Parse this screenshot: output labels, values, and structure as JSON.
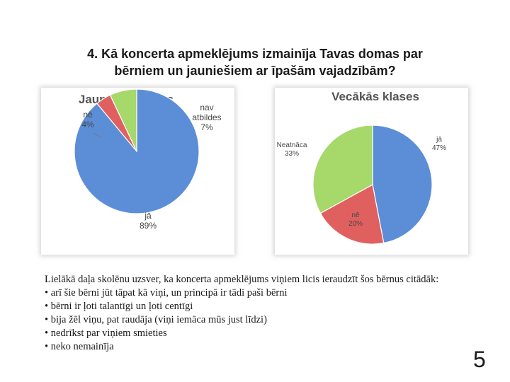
{
  "slide": {
    "title_line1": "4.  Kā koncerta apmeklējums izmainīja Tavas domas par",
    "title_line2": "bērniem un jauniešiem ar īpašām vajadzībām?",
    "summary": "Lielākā daļa skolēnu uzsver, ka koncerta apmeklējums viņiem licis ieraudzīt šos bērnus citādāk:",
    "bullets": [
      "arī šie bērni jūt tāpat kā viņi, un principā ir tādi paši bērni",
      "bērni ir ļoti talantīgi un ļoti centīgi",
      "bija žēl viņu, pat raudāja (viņi iemāca mūs just līdzi)",
      "nedrīkst par viņiem smieties",
      "neko nemainīja"
    ],
    "page_number": "5"
  },
  "chart_data": [
    {
      "type": "pie",
      "title": "Jaunākās klases",
      "slices": [
        {
          "label": "jā",
          "value": 89,
          "value_label": "89%",
          "color": "#5b8ed6"
        },
        {
          "label": "nē",
          "value": 4,
          "value_label": "4%",
          "color": "#e06060"
        },
        {
          "label": "nav atbildes",
          "label_lines": [
            "nav",
            "atbildes"
          ],
          "value": 7,
          "value_label": "7%",
          "color": "#a6d86a"
        }
      ]
    },
    {
      "type": "pie",
      "title": "Vecākās klases",
      "slices": [
        {
          "label": "jā",
          "value": 47,
          "value_label": "47%",
          "color": "#5b8ed6"
        },
        {
          "label": "nē",
          "value": 20,
          "value_label": "20%",
          "color": "#e06060"
        },
        {
          "label": "Neatnāca",
          "value": 33,
          "value_label": "33%",
          "color": "#a6d86a"
        }
      ]
    }
  ]
}
